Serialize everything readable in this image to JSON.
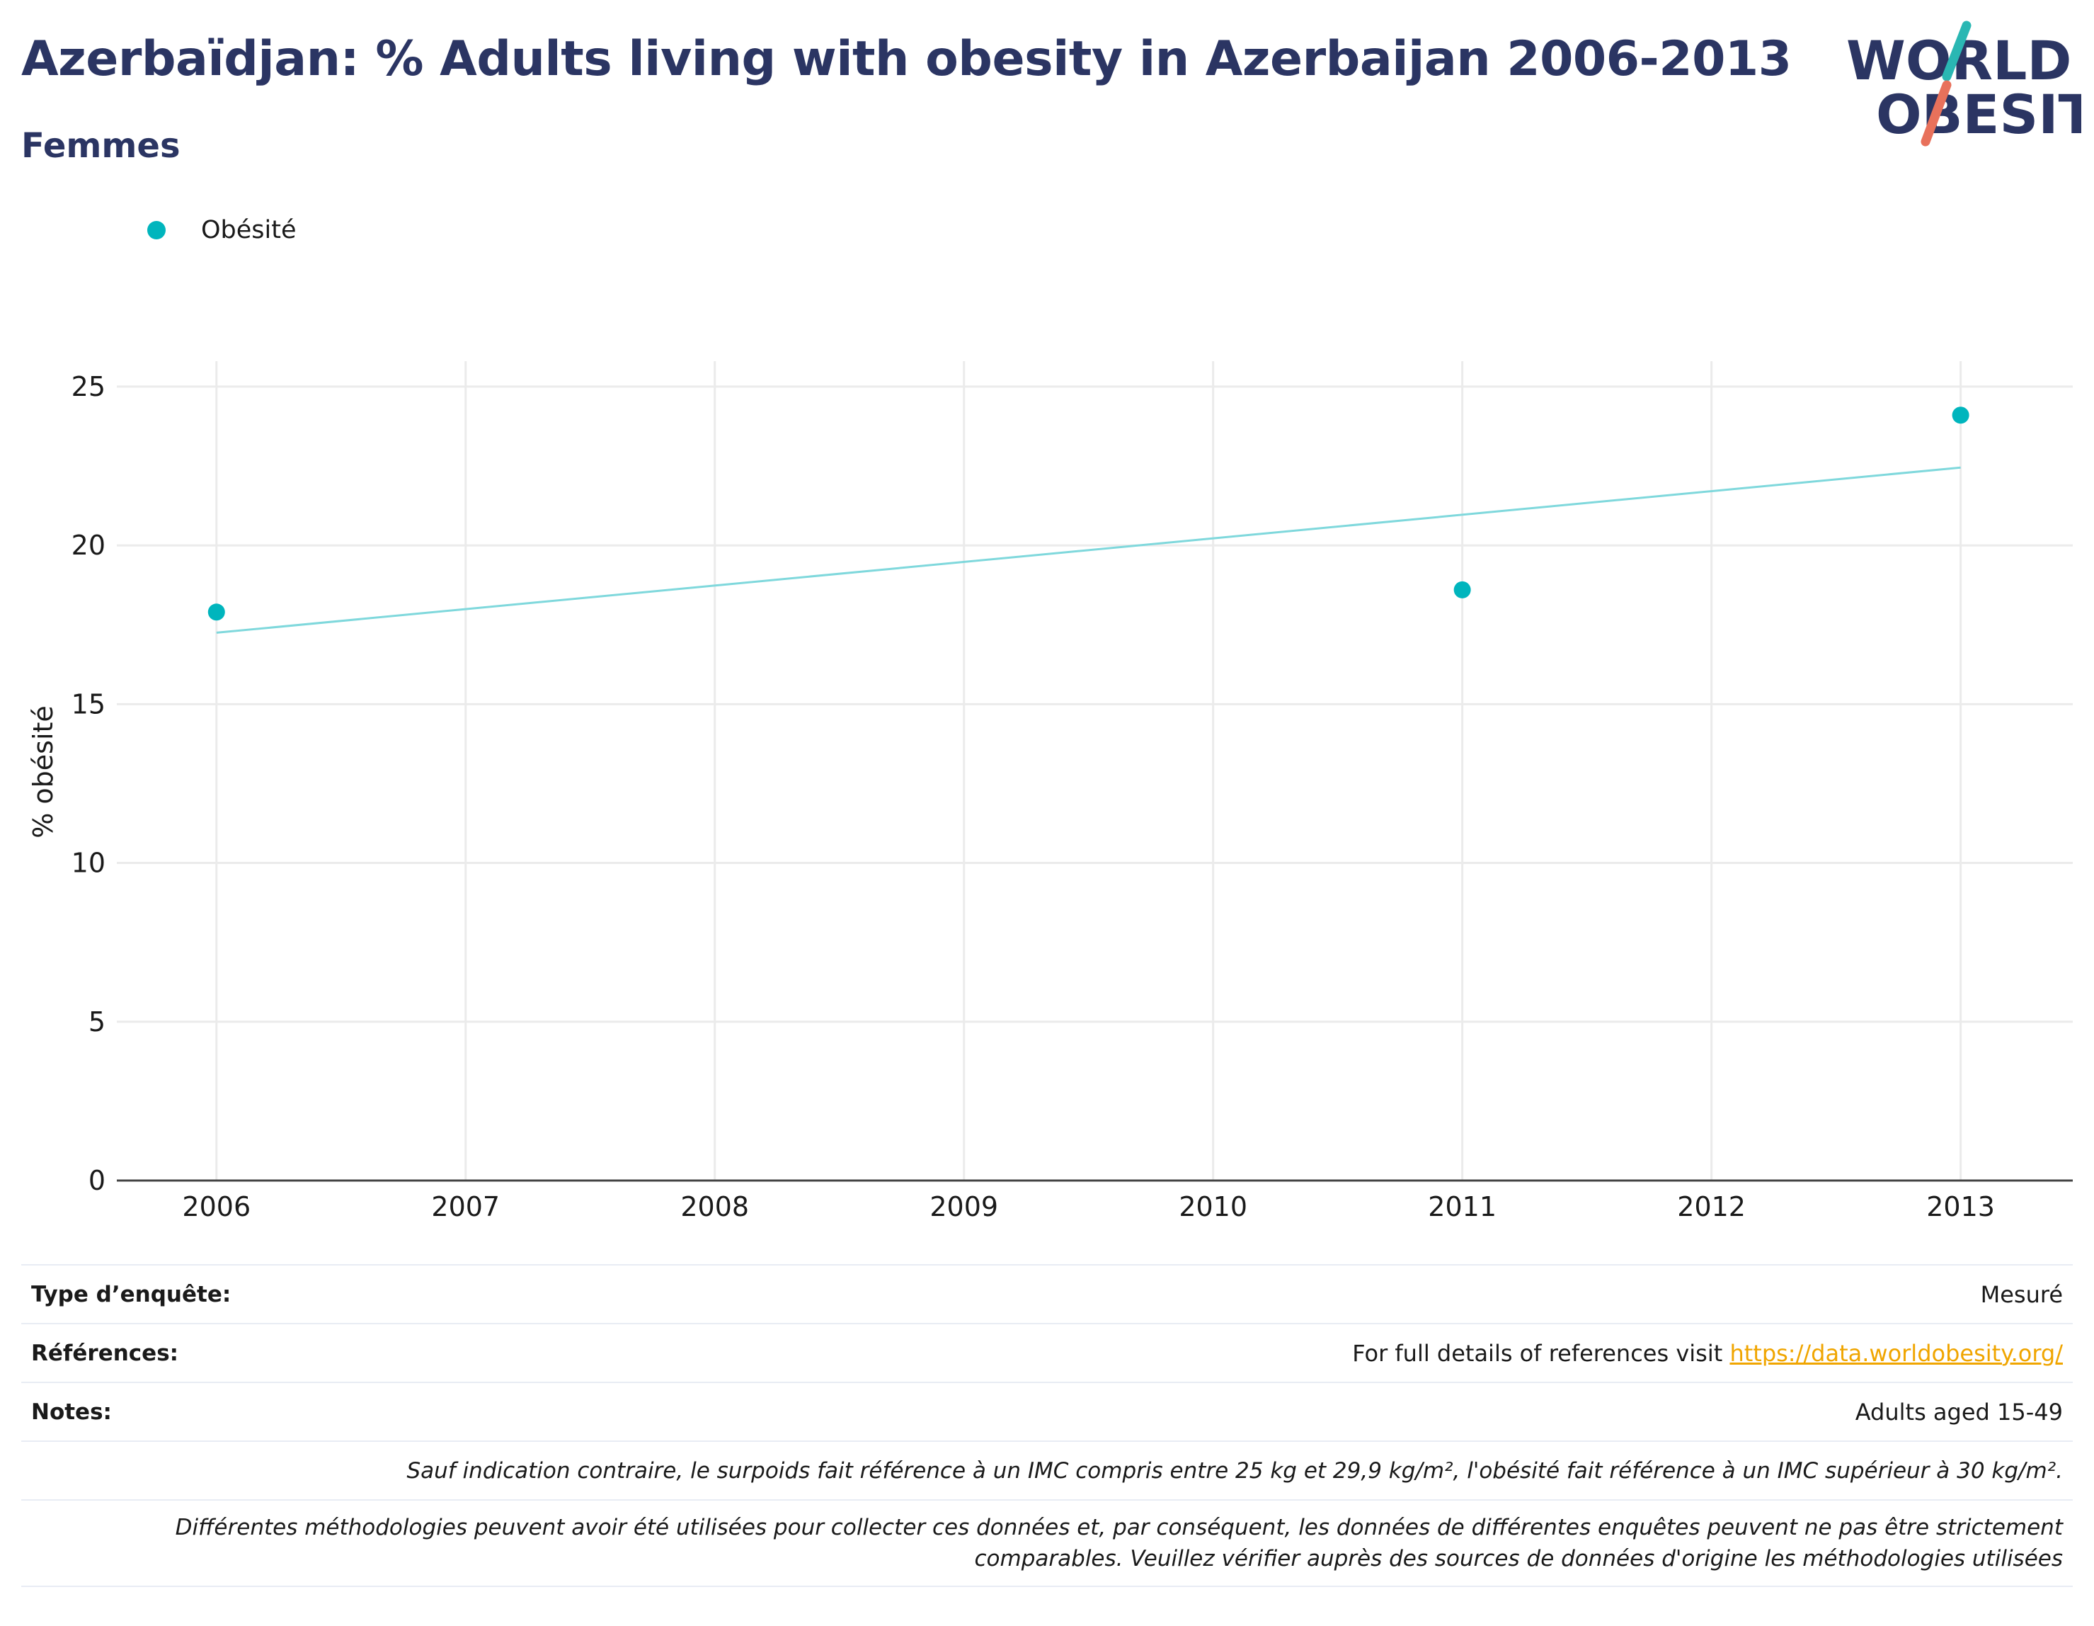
{
  "header": {
    "title": "Azerbaïdjan: % Adults living with obesity in Azerbaijan 2006-2013",
    "subtitle": "Femmes",
    "logo_text_line1": "WORLD",
    "logo_text_line2": "OBESITY"
  },
  "legend": {
    "series_label": "Obésité"
  },
  "chart_data": {
    "type": "scatter",
    "title": "Azerbaïdjan: % Adults living with obesity in Azerbaijan 2006-2013",
    "subtitle": "Femmes",
    "xlabel": "",
    "ylabel": "% obésité",
    "xlim": [
      2005.6,
      2013.45
    ],
    "ylim": [
      0,
      25.8
    ],
    "x_ticks": [
      "2006",
      "2007",
      "2008",
      "2009",
      "2010",
      "2011",
      "2012",
      "2013"
    ],
    "y_ticks": [
      "0",
      "5",
      "10",
      "15",
      "20",
      "25"
    ],
    "grid": true,
    "legend_position": "top-left",
    "series": [
      {
        "name": "Obésité",
        "color": "#00b5bd",
        "points": [
          {
            "x": 2006,
            "y": 17.9
          },
          {
            "x": 2011,
            "y": 18.6
          },
          {
            "x": 2013,
            "y": 24.1
          }
        ]
      }
    ],
    "trendline": {
      "color": "#7fd8dc",
      "points": [
        {
          "x": 2006,
          "y": 17.25
        },
        {
          "x": 2013,
          "y": 22.45
        }
      ]
    }
  },
  "info": {
    "survey_label": "Type d’enquête:",
    "survey_value": "Mesuré",
    "refs_label": "Références:",
    "refs_text": "For full details of references visit",
    "refs_link": "https://data.worldobesity.org/",
    "notes_label": "Notes:",
    "notes_value": "Adults aged 15-49",
    "definition_note": "Sauf indication contraire, le surpoids fait référence à un IMC compris entre 25 kg et 29,9 kg/m², l'obésité fait référence à un IMC supérieur à 30 kg/m².",
    "methodology_note_line1": "Différentes méthodologies peuvent avoir été utilisées pour collecter ces données et, par conséquent, les données de différentes enquêtes peuvent ne pas être strictement",
    "methodology_note_line2": "comparables. Veuillez vérifier auprès des sources de données d'origine les méthodologies utilisées"
  },
  "colors": {
    "title": "#2b3563",
    "series": "#00b5bd",
    "trendline": "#7fd8dc",
    "logo_teal": "#2ab7b3",
    "logo_coral": "#e8715b",
    "link": "#f0a500"
  }
}
